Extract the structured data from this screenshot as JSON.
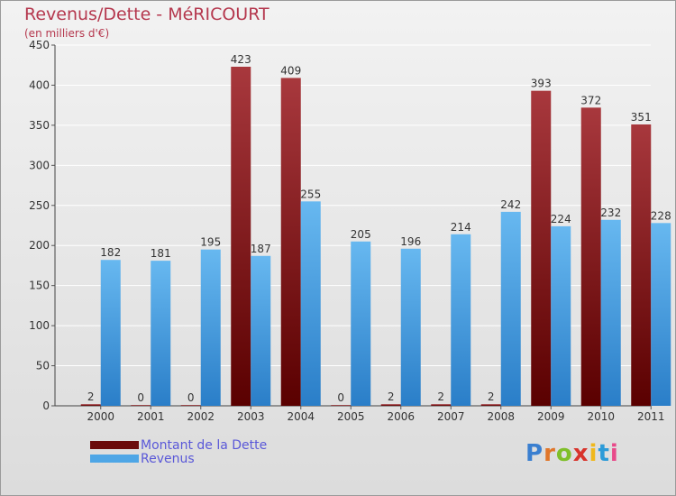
{
  "title": "Revenus/Dette - MéRICOURT",
  "subtitle": "(en milliers d'€)",
  "brand": {
    "logo_text": "Proxiti",
    "letter_colors": [
      "#3a7fd0",
      "#e0762a",
      "#7fbf2a",
      "#d8342c",
      "#f0b81c",
      "#2d9bd8",
      "#e84a8a"
    ]
  },
  "colors": {
    "dette_top": "#a8383d",
    "dette_bottom": "#5a0000",
    "revenus_top": "#67b8f0",
    "revenus_bottom": "#2a7ec8",
    "grid": "#ffffff",
    "axis_text": "#333333",
    "title": "#b5384e",
    "legend_text": "#5a58d8"
  },
  "legend": [
    {
      "label": "Montant de la Dette",
      "color": "#6b0a0a"
    },
    {
      "label": "Revenus",
      "color": "#4ea6e6"
    }
  ],
  "chart_data": {
    "type": "bar",
    "title": "Revenus/Dette - MéRICOURT",
    "ylabel": "(en milliers d'€)",
    "xlabel": "",
    "ylim": [
      0,
      450
    ],
    "yticks": [
      0,
      50,
      100,
      150,
      200,
      250,
      300,
      350,
      400,
      450
    ],
    "grid": true,
    "legend_position": "bottom-left",
    "categories": [
      "2000",
      "2001",
      "2002",
      "2003",
      "2004",
      "2005",
      "2006",
      "2007",
      "2008",
      "2009",
      "2010",
      "2011"
    ],
    "series": [
      {
        "name": "Montant de la Dette",
        "values": [
          2,
          0,
          0,
          423,
          409,
          0,
          2,
          2,
          2,
          393,
          372,
          351
        ]
      },
      {
        "name": "Revenus",
        "values": [
          182,
          181,
          195,
          187,
          255,
          205,
          196,
          214,
          242,
          224,
          232,
          228
        ]
      }
    ]
  }
}
